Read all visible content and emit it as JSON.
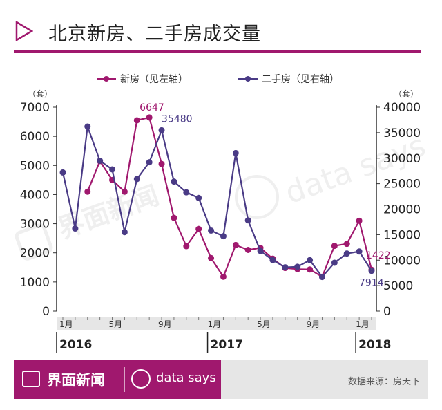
{
  "title": "北京新房、二手房成交量",
  "watermark": {
    "brand": "界面新闻",
    "datasays": "data says"
  },
  "footer": {
    "brand": "界面新闻",
    "datasays": "data says",
    "source": "数据来源：房天下"
  },
  "colors": {
    "brand": "#a0186e",
    "series_new": "#a0186e",
    "series_second": "#4a3b86"
  },
  "chart_data": {
    "type": "line",
    "unit_left": "（套）",
    "unit_right": "（套）",
    "x": [
      "2016-01",
      "2016-02",
      "2016-03",
      "2016-04",
      "2016-05",
      "2016-06",
      "2016-07",
      "2016-08",
      "2016-09",
      "2016-10",
      "2016-11",
      "2016-12",
      "2017-01",
      "2017-02",
      "2017-03",
      "2017-04",
      "2017-05",
      "2017-06",
      "2017-07",
      "2017-08",
      "2017-09",
      "2017-10",
      "2017-11",
      "2017-12",
      "2018-01",
      "2018-02"
    ],
    "x_tick_labels": [
      "1月",
      "5月",
      "9月",
      "1月",
      "5月",
      "9月",
      "1月"
    ],
    "x_tick_positions": [
      "2016-01",
      "2016-05",
      "2016-09",
      "2017-01",
      "2017-05",
      "2017-09",
      "2018-01"
    ],
    "year_labels": [
      "2016",
      "2017",
      "2018"
    ],
    "year_positions": [
      "2016-01",
      "2017-01",
      "2018-01"
    ],
    "y_left_lim": [
      0,
      7000
    ],
    "y_left_ticks": [
      "0",
      "1000",
      "2000",
      "3000",
      "4000",
      "5000",
      "6000",
      "7000"
    ],
    "y_right_lim": [
      0,
      40000
    ],
    "y_right_ticks": [
      "0",
      "5000",
      "10000",
      "15000",
      "20000",
      "25000",
      "30000",
      "35000",
      "40000"
    ],
    "series": [
      {
        "name": "新房（见左轴）",
        "axis": "left",
        "values": [
          null,
          null,
          4100,
          5150,
          4500,
          4100,
          6550,
          6647,
          5050,
          3200,
          2230,
          2820,
          1820,
          1180,
          2270,
          2100,
          2170,
          1800,
          1480,
          1440,
          1430,
          1180,
          2240,
          2310,
          3100,
          1422
        ]
      },
      {
        "name": "二手房（见右轴）",
        "axis": "right",
        "values": [
          27200,
          16200,
          36200,
          29500,
          27800,
          15500,
          25900,
          29200,
          35480,
          25400,
          23300,
          22200,
          15800,
          14700,
          31000,
          17800,
          11800,
          10000,
          8600,
          8700,
          10000,
          6700,
          9500,
          11300,
          11700,
          7914
        ]
      }
    ],
    "annotations": [
      {
        "series": 0,
        "x": "2016-08",
        "text": "6647"
      },
      {
        "series": 1,
        "x": "2016-09",
        "text": "35480"
      },
      {
        "series": 0,
        "x": "2018-02",
        "text": "1422"
      },
      {
        "series": 1,
        "x": "2018-02",
        "text": "7914"
      }
    ],
    "legend_placement": "top-center",
    "grid": false
  }
}
